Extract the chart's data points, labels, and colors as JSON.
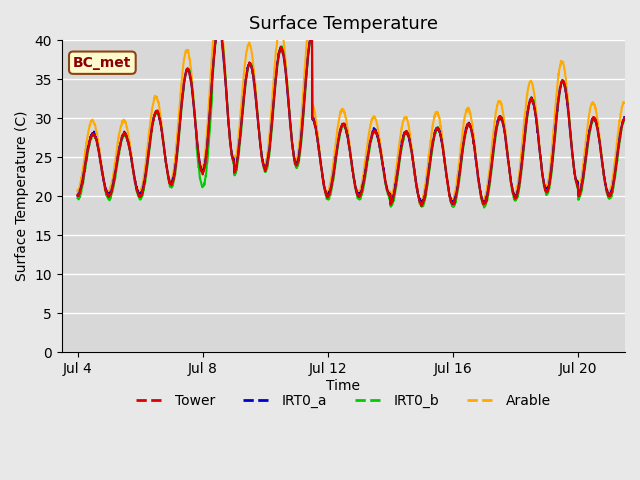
{
  "title": "Surface Temperature",
  "ylabel": "Surface Temperature (C)",
  "xlabel": "Time",
  "annotation_label": "BC_met",
  "ylim": [
    0,
    40
  ],
  "xlim_days": [
    4,
    21.5
  ],
  "xtick_days": [
    4,
    8,
    12,
    16,
    20
  ],
  "xtick_labels": [
    "Jul 4",
    "Jul 8",
    "Jul 12",
    "Jul 16",
    "Jul 20"
  ],
  "ytick_values": [
    0,
    5,
    10,
    15,
    20,
    25,
    30,
    35,
    40
  ],
  "bg_color": "#e8e8e8",
  "plot_bg_color": "#d8d8d8",
  "grid_color": "#ffffff",
  "colors": {
    "Tower": "#dd0000",
    "IRT0_a": "#0000cc",
    "IRT0_b": "#00cc00",
    "Arable": "#ffaa00"
  },
  "line_width": 1.5,
  "num_cycles": 17,
  "start_day": 4.0,
  "end_day": 21.5,
  "period_hours": 24
}
